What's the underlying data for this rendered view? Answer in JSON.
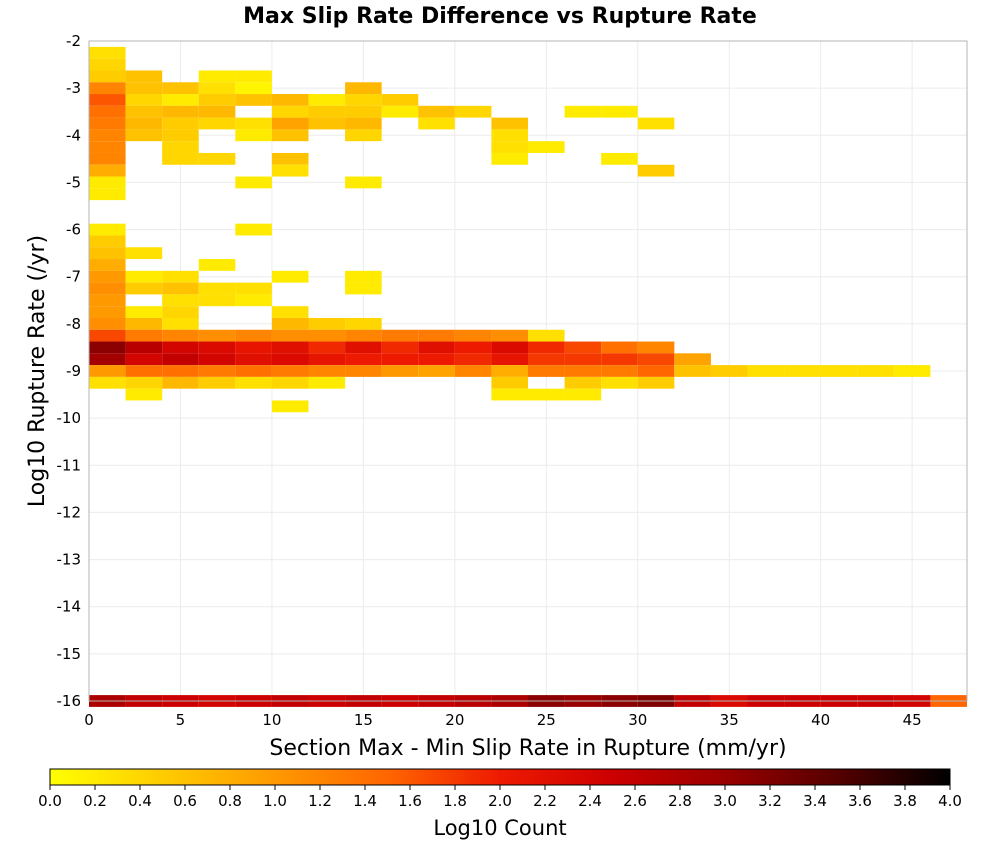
{
  "chart_data": {
    "type": "heatmap",
    "title": "Max Slip Rate Difference vs Rupture Rate",
    "xlabel": "Section Max - Min Slip Rate in Rupture (mm/yr)",
    "ylabel": "Log10 Rupture Rate (/yr)",
    "xlim": [
      0,
      48
    ],
    "ylim": [
      -16,
      -2
    ],
    "x_ticks": [
      "0",
      "5",
      "10",
      "15",
      "20",
      "25",
      "30",
      "35",
      "40",
      "45"
    ],
    "y_ticks": [
      "-2",
      "-3",
      "-4",
      "-5",
      "-6",
      "-7",
      "-8",
      "-9",
      "-10",
      "-11",
      "-12",
      "-13",
      "-14",
      "-15",
      "-16"
    ],
    "grid": true,
    "bin_width_x": 2,
    "bin_height_y": 0.25,
    "colorbar": {
      "label": "Log10 Count",
      "min": 0.0,
      "max": 4.0,
      "ticks": [
        "0.0",
        "0.2",
        "0.4",
        "0.6",
        "0.8",
        "1.0",
        "1.2",
        "1.4",
        "1.6",
        "1.8",
        "2.0",
        "2.2",
        "2.4",
        "2.6",
        "2.8",
        "3.0",
        "3.2",
        "3.4",
        "3.6",
        "3.8",
        "4.0"
      ],
      "palette": [
        "#ffff00",
        "#ffcc00",
        "#ff9900",
        "#ff6600",
        "#ee1a00",
        "#cc0000",
        "#990000",
        "#550000",
        "#000000"
      ]
    },
    "cells": [
      {
        "x": 0,
        "y": -2.25,
        "v": 0.3
      },
      {
        "x": 0,
        "y": -2.5,
        "v": 0.4
      },
      {
        "x": 0,
        "y": -2.75,
        "v": 0.5
      },
      {
        "x": 0,
        "y": -3.0,
        "v": 1.2
      },
      {
        "x": 0,
        "y": -3.25,
        "v": 1.6
      },
      {
        "x": 0,
        "y": -3.5,
        "v": 1.4
      },
      {
        "x": 0,
        "y": -3.75,
        "v": 1.3
      },
      {
        "x": 0,
        "y": -4.0,
        "v": 1.2
      },
      {
        "x": 0,
        "y": -4.25,
        "v": 1.2
      },
      {
        "x": 0,
        "y": -4.5,
        "v": 1.2
      },
      {
        "x": 0,
        "y": -4.75,
        "v": 0.8
      },
      {
        "x": 0,
        "y": -5.0,
        "v": 0.2
      },
      {
        "x": 0,
        "y": -5.25,
        "v": 0.2
      },
      {
        "x": 0,
        "y": -6.0,
        "v": 0.2
      },
      {
        "x": 0,
        "y": -6.25,
        "v": 0.5
      },
      {
        "x": 0,
        "y": -6.5,
        "v": 0.6
      },
      {
        "x": 0,
        "y": -6.75,
        "v": 0.8
      },
      {
        "x": 0,
        "y": -7.0,
        "v": 1.0
      },
      {
        "x": 0,
        "y": -7.25,
        "v": 1.1
      },
      {
        "x": 0,
        "y": -7.5,
        "v": 1.0
      },
      {
        "x": 0,
        "y": -7.75,
        "v": 1.0
      },
      {
        "x": 0,
        "y": -8.0,
        "v": 1.1
      },
      {
        "x": 0,
        "y": -8.25,
        "v": 1.7
      },
      {
        "x": 0,
        "y": -8.5,
        "v": 3.1
      },
      {
        "x": 0,
        "y": -8.75,
        "v": 2.9
      },
      {
        "x": 0,
        "y": -9.0,
        "v": 1.0
      },
      {
        "x": 0,
        "y": -9.25,
        "v": 0.3
      },
      {
        "x": 2,
        "y": -2.75,
        "v": 0.6
      },
      {
        "x": 2,
        "y": -3.0,
        "v": 0.6
      },
      {
        "x": 2,
        "y": -3.25,
        "v": 0.4
      },
      {
        "x": 2,
        "y": -3.5,
        "v": 0.6
      },
      {
        "x": 2,
        "y": -3.75,
        "v": 0.7
      },
      {
        "x": 2,
        "y": -4.0,
        "v": 0.6
      },
      {
        "x": 2,
        "y": -6.5,
        "v": 0.3
      },
      {
        "x": 2,
        "y": -7.0,
        "v": 0.2
      },
      {
        "x": 2,
        "y": -7.25,
        "v": 0.5
      },
      {
        "x": 2,
        "y": -7.75,
        "v": 0.2
      },
      {
        "x": 2,
        "y": -8.0,
        "v": 0.7
      },
      {
        "x": 2,
        "y": -8.25,
        "v": 1.3
      },
      {
        "x": 2,
        "y": -8.5,
        "v": 2.7
      },
      {
        "x": 2,
        "y": -8.75,
        "v": 2.4
      },
      {
        "x": 2,
        "y": -9.0,
        "v": 1.4
      },
      {
        "x": 2,
        "y": -9.25,
        "v": 0.4
      },
      {
        "x": 2,
        "y": -9.5,
        "v": 0.2
      },
      {
        "x": 4,
        "y": -3.0,
        "v": 0.6
      },
      {
        "x": 4,
        "y": -3.25,
        "v": 0.2
      },
      {
        "x": 4,
        "y": -3.5,
        "v": 0.7
      },
      {
        "x": 4,
        "y": -3.75,
        "v": 0.5
      },
      {
        "x": 4,
        "y": -4.0,
        "v": 0.5
      },
      {
        "x": 4,
        "y": -4.25,
        "v": 0.4
      },
      {
        "x": 4,
        "y": -4.5,
        "v": 0.4
      },
      {
        "x": 4,
        "y": -7.0,
        "v": 0.3
      },
      {
        "x": 4,
        "y": -7.25,
        "v": 0.6
      },
      {
        "x": 4,
        "y": -7.5,
        "v": 0.3
      },
      {
        "x": 4,
        "y": -7.75,
        "v": 0.4
      },
      {
        "x": 4,
        "y": -8.0,
        "v": 0.3
      },
      {
        "x": 4,
        "y": -8.25,
        "v": 1.2
      },
      {
        "x": 4,
        "y": -8.5,
        "v": 2.4
      },
      {
        "x": 4,
        "y": -8.75,
        "v": 2.6
      },
      {
        "x": 4,
        "y": -9.0,
        "v": 1.4
      },
      {
        "x": 4,
        "y": -9.25,
        "v": 0.7
      },
      {
        "x": 6,
        "y": -2.75,
        "v": 0.2
      },
      {
        "x": 6,
        "y": -3.0,
        "v": 0.3
      },
      {
        "x": 6,
        "y": -3.25,
        "v": 0.5
      },
      {
        "x": 6,
        "y": -3.5,
        "v": 0.7
      },
      {
        "x": 6,
        "y": -3.75,
        "v": 0.4
      },
      {
        "x": 6,
        "y": -4.5,
        "v": 0.4
      },
      {
        "x": 6,
        "y": -6.75,
        "v": 0.2
      },
      {
        "x": 6,
        "y": -7.25,
        "v": 0.3
      },
      {
        "x": 6,
        "y": -7.5,
        "v": 0.3
      },
      {
        "x": 6,
        "y": -8.25,
        "v": 1.1
      },
      {
        "x": 6,
        "y": -8.5,
        "v": 2.3
      },
      {
        "x": 6,
        "y": -8.75,
        "v": 2.4
      },
      {
        "x": 6,
        "y": -9.0,
        "v": 1.3
      },
      {
        "x": 6,
        "y": -9.25,
        "v": 0.5
      },
      {
        "x": 8,
        "y": -2.75,
        "v": 0.2
      },
      {
        "x": 8,
        "y": -3.0,
        "v": 0.1
      },
      {
        "x": 8,
        "y": -3.25,
        "v": 0.6
      },
      {
        "x": 8,
        "y": -3.75,
        "v": 0.3
      },
      {
        "x": 8,
        "y": -4.0,
        "v": 0.2
      },
      {
        "x": 8,
        "y": -5.0,
        "v": 0.2
      },
      {
        "x": 8,
        "y": -6.0,
        "v": 0.2
      },
      {
        "x": 8,
        "y": -7.25,
        "v": 0.3
      },
      {
        "x": 8,
        "y": -7.5,
        "v": 0.2
      },
      {
        "x": 8,
        "y": -8.25,
        "v": 1.2
      },
      {
        "x": 8,
        "y": -8.5,
        "v": 2.1
      },
      {
        "x": 8,
        "y": -8.75,
        "v": 2.2
      },
      {
        "x": 8,
        "y": -9.0,
        "v": 1.4
      },
      {
        "x": 8,
        "y": -9.25,
        "v": 0.3
      },
      {
        "x": 10,
        "y": -3.25,
        "v": 0.7
      },
      {
        "x": 10,
        "y": -3.5,
        "v": 0.4
      },
      {
        "x": 10,
        "y": -3.75,
        "v": 0.9
      },
      {
        "x": 10,
        "y": -4.0,
        "v": 0.6
      },
      {
        "x": 10,
        "y": -4.5,
        "v": 0.6
      },
      {
        "x": 10,
        "y": -4.75,
        "v": 0.3
      },
      {
        "x": 10,
        "y": -7.0,
        "v": 0.2
      },
      {
        "x": 10,
        "y": -7.75,
        "v": 0.3
      },
      {
        "x": 10,
        "y": -8.0,
        "v": 0.7
      },
      {
        "x": 10,
        "y": -8.25,
        "v": 1.1
      },
      {
        "x": 10,
        "y": -8.5,
        "v": 2.2
      },
      {
        "x": 10,
        "y": -8.75,
        "v": 2.3
      },
      {
        "x": 10,
        "y": -9.0,
        "v": 1.3
      },
      {
        "x": 10,
        "y": -9.25,
        "v": 0.4
      },
      {
        "x": 10,
        "y": -9.75,
        "v": 0.2
      },
      {
        "x": 12,
        "y": -3.25,
        "v": 0.2
      },
      {
        "x": 12,
        "y": -3.5,
        "v": 0.5
      },
      {
        "x": 12,
        "y": -3.75,
        "v": 0.6
      },
      {
        "x": 12,
        "y": -8.0,
        "v": 0.5
      },
      {
        "x": 12,
        "y": -8.25,
        "v": 1.1
      },
      {
        "x": 12,
        "y": -8.5,
        "v": 1.9
      },
      {
        "x": 12,
        "y": -8.75,
        "v": 2.1
      },
      {
        "x": 12,
        "y": -9.0,
        "v": 1.2
      },
      {
        "x": 12,
        "y": -9.25,
        "v": 0.2
      },
      {
        "x": 14,
        "y": -3.0,
        "v": 0.7
      },
      {
        "x": 14,
        "y": -3.25,
        "v": 0.4
      },
      {
        "x": 14,
        "y": -3.5,
        "v": 0.5
      },
      {
        "x": 14,
        "y": -3.75,
        "v": 0.7
      },
      {
        "x": 14,
        "y": -4.0,
        "v": 0.4
      },
      {
        "x": 14,
        "y": -5.0,
        "v": 0.2
      },
      {
        "x": 14,
        "y": -7.0,
        "v": 0.2
      },
      {
        "x": 14,
        "y": -7.25,
        "v": 0.2
      },
      {
        "x": 14,
        "y": -8.0,
        "v": 0.4
      },
      {
        "x": 14,
        "y": -8.25,
        "v": 1.2
      },
      {
        "x": 14,
        "y": -8.5,
        "v": 2.2
      },
      {
        "x": 14,
        "y": -8.75,
        "v": 2.0
      },
      {
        "x": 14,
        "y": -9.0,
        "v": 1.2
      },
      {
        "x": 16,
        "y": -3.25,
        "v": 0.5
      },
      {
        "x": 16,
        "y": -3.5,
        "v": 0.2
      },
      {
        "x": 16,
        "y": -8.25,
        "v": 1.3
      },
      {
        "x": 16,
        "y": -8.5,
        "v": 1.9
      },
      {
        "x": 16,
        "y": -8.75,
        "v": 2.0
      },
      {
        "x": 16,
        "y": -9.0,
        "v": 1.0
      },
      {
        "x": 18,
        "y": -3.5,
        "v": 0.6
      },
      {
        "x": 18,
        "y": -3.75,
        "v": 0.3
      },
      {
        "x": 18,
        "y": -8.25,
        "v": 1.3
      },
      {
        "x": 18,
        "y": -8.5,
        "v": 2.2
      },
      {
        "x": 18,
        "y": -8.75,
        "v": 2.0
      },
      {
        "x": 18,
        "y": -9.0,
        "v": 0.9
      },
      {
        "x": 20,
        "y": -3.5,
        "v": 0.4
      },
      {
        "x": 20,
        "y": -8.25,
        "v": 1.2
      },
      {
        "x": 20,
        "y": -8.5,
        "v": 2.0
      },
      {
        "x": 20,
        "y": -8.75,
        "v": 1.9
      },
      {
        "x": 20,
        "y": -9.0,
        "v": 1.2
      },
      {
        "x": 22,
        "y": -3.75,
        "v": 0.6
      },
      {
        "x": 22,
        "y": -4.0,
        "v": 0.3
      },
      {
        "x": 22,
        "y": -4.25,
        "v": 0.3
      },
      {
        "x": 22,
        "y": -4.5,
        "v": 0.2
      },
      {
        "x": 22,
        "y": -8.25,
        "v": 1.1
      },
      {
        "x": 22,
        "y": -8.5,
        "v": 2.3
      },
      {
        "x": 22,
        "y": -8.75,
        "v": 2.1
      },
      {
        "x": 22,
        "y": -9.0,
        "v": 0.8
      },
      {
        "x": 22,
        "y": -9.25,
        "v": 0.5
      },
      {
        "x": 22,
        "y": -9.5,
        "v": 0.2
      },
      {
        "x": 24,
        "y": -4.25,
        "v": 0.2
      },
      {
        "x": 24,
        "y": -8.25,
        "v": 0.3
      },
      {
        "x": 24,
        "y": -8.5,
        "v": 1.9
      },
      {
        "x": 24,
        "y": -8.75,
        "v": 1.8
      },
      {
        "x": 24,
        "y": -9.0,
        "v": 1.3
      },
      {
        "x": 24,
        "y": -9.5,
        "v": 0.2
      },
      {
        "x": 26,
        "y": -3.5,
        "v": 0.2
      },
      {
        "x": 26,
        "y": -8.5,
        "v": 1.7
      },
      {
        "x": 26,
        "y": -8.75,
        "v": 1.8
      },
      {
        "x": 26,
        "y": -9.0,
        "v": 1.3
      },
      {
        "x": 26,
        "y": -9.25,
        "v": 0.5
      },
      {
        "x": 26,
        "y": -9.5,
        "v": 0.2
      },
      {
        "x": 28,
        "y": -3.5,
        "v": 0.2
      },
      {
        "x": 28,
        "y": -4.5,
        "v": 0.2
      },
      {
        "x": 28,
        "y": -8.5,
        "v": 1.4
      },
      {
        "x": 28,
        "y": -8.75,
        "v": 1.8
      },
      {
        "x": 28,
        "y": -9.0,
        "v": 1.3
      },
      {
        "x": 28,
        "y": -9.25,
        "v": 0.3
      },
      {
        "x": 30,
        "y": -3.75,
        "v": 0.3
      },
      {
        "x": 30,
        "y": -4.75,
        "v": 0.5
      },
      {
        "x": 30,
        "y": -8.5,
        "v": 1.2
      },
      {
        "x": 30,
        "y": -8.75,
        "v": 1.7
      },
      {
        "x": 30,
        "y": -9.0,
        "v": 1.5
      },
      {
        "x": 30,
        "y": -9.25,
        "v": 0.5
      },
      {
        "x": 32,
        "y": -8.75,
        "v": 0.9
      },
      {
        "x": 32,
        "y": -9.0,
        "v": 0.6
      },
      {
        "x": 34,
        "y": -9.0,
        "v": 0.5
      },
      {
        "x": 36,
        "y": -9.0,
        "v": 0.3
      },
      {
        "x": 38,
        "y": -9.0,
        "v": 0.3
      },
      {
        "x": 40,
        "y": -9.0,
        "v": 0.3
      },
      {
        "x": 42,
        "y": -9.0,
        "v": 0.3
      },
      {
        "x": 44,
        "y": -9.0,
        "v": 0.2
      },
      {
        "x": 0,
        "y": -16.0,
        "v": 2.8
      },
      {
        "x": 2,
        "y": -16.0,
        "v": 2.6
      },
      {
        "x": 4,
        "y": -16.0,
        "v": 2.5
      },
      {
        "x": 6,
        "y": -16.0,
        "v": 2.4
      },
      {
        "x": 8,
        "y": -16.0,
        "v": 2.5
      },
      {
        "x": 10,
        "y": -16.0,
        "v": 2.6
      },
      {
        "x": 12,
        "y": -16.0,
        "v": 2.5
      },
      {
        "x": 14,
        "y": -16.0,
        "v": 2.6
      },
      {
        "x": 16,
        "y": -16.0,
        "v": 2.5
      },
      {
        "x": 18,
        "y": -16.0,
        "v": 2.6
      },
      {
        "x": 20,
        "y": -16.0,
        "v": 2.7
      },
      {
        "x": 22,
        "y": -16.0,
        "v": 2.8
      },
      {
        "x": 24,
        "y": -16.0,
        "v": 3.1
      },
      {
        "x": 26,
        "y": -16.0,
        "v": 3.0
      },
      {
        "x": 28,
        "y": -16.0,
        "v": 3.1
      },
      {
        "x": 30,
        "y": -16.0,
        "v": 3.2
      },
      {
        "x": 32,
        "y": -16.0,
        "v": 2.6
      },
      {
        "x": 34,
        "y": -16.0,
        "v": 2.3
      },
      {
        "x": 36,
        "y": -16.0,
        "v": 2.5
      },
      {
        "x": 38,
        "y": -16.0,
        "v": 2.5
      },
      {
        "x": 40,
        "y": -16.0,
        "v": 2.5
      },
      {
        "x": 42,
        "y": -16.0,
        "v": 2.5
      },
      {
        "x": 44,
        "y": -16.0,
        "v": 2.4
      },
      {
        "x": 46,
        "y": -16.0,
        "v": 1.5
      }
    ]
  }
}
